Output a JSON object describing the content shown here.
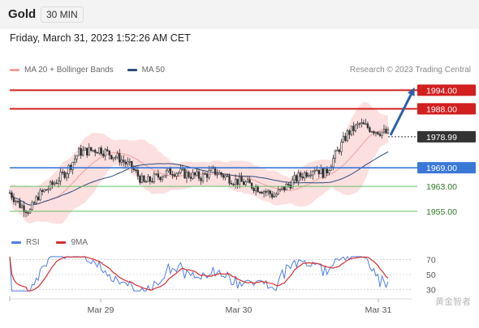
{
  "header": {
    "instrument": "Gold",
    "timeframe": "30 MIN"
  },
  "datetime": "Friday, March 31, 2023 1:52:26 AM CET",
  "legend": {
    "bb_label": "MA 20 + Bollinger Bands",
    "ma50_label": "MA 50",
    "rsi_label": "RSI",
    "ma9_label": "9MA"
  },
  "research": "Research © 2023 Trading Central",
  "watermark": "黄金智者",
  "colors": {
    "resistance": "#d21f1f",
    "support": "#3a78d8",
    "minor": "#69bf63",
    "bb": "#f3a8a8",
    "ma50": "#2c4d7c",
    "rsi": "#4f7fe0",
    "ma9": "#d32f2f",
    "current": "#333333"
  },
  "chart_data": [
    {
      "type": "line",
      "title": "",
      "ylim": [
        1950,
        1998
      ],
      "x_labels": [
        "Mar 29",
        "Mar 30",
        "Mar 31"
      ],
      "levels": [
        {
          "price": 1994.0,
          "label": "1994.00",
          "kind": "resistance"
        },
        {
          "price": 1988.0,
          "label": "1988.00",
          "kind": "resistance"
        },
        {
          "price": 1978.99,
          "label": "1978.99",
          "kind": "current"
        },
        {
          "price": 1969.0,
          "label": "1969.00",
          "kind": "support"
        },
        {
          "price": 1963.0,
          "label": "1963.00",
          "kind": "minor"
        },
        {
          "price": 1955.0,
          "label": "1955.00",
          "kind": "minor"
        }
      ],
      "series": [
        {
          "name": "MA 20 + Bollinger Bands"
        },
        {
          "name": "MA 50"
        }
      ]
    },
    {
      "type": "line",
      "title": "",
      "ylim": [
        25,
        75
      ],
      "ticks": [
        70,
        50,
        30
      ],
      "series": [
        {
          "name": "RSI"
        },
        {
          "name": "9MA"
        }
      ]
    }
  ]
}
